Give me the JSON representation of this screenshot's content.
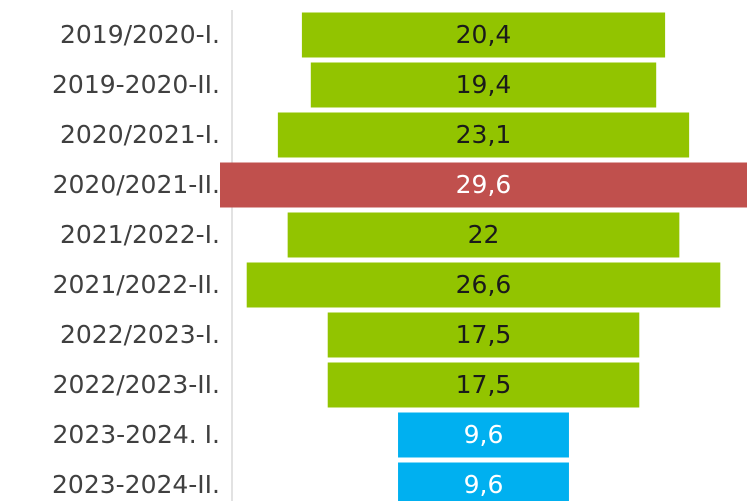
{
  "chart_data": {
    "type": "bar",
    "orientation": "horizontal",
    "align": "center",
    "categories": [
      "2019/2020-I.",
      "2019-2020-II.",
      "2020/2021-I.",
      "2020/2021-II.",
      "2021/2022-I.",
      "2021/2022-II.",
      "2022/2023-I.",
      "2022/2023-II.",
      "2023-2024. I.",
      "2023-2024-II."
    ],
    "values": [
      20.4,
      19.4,
      23.1,
      29.6,
      22,
      26.6,
      17.5,
      17.5,
      9.6,
      9.6
    ],
    "value_labels": [
      "20,4",
      "19,4",
      "23,1",
      "29,6",
      "22",
      "26,6",
      "17,5",
      "17,5",
      "9,6",
      "9,6"
    ],
    "colors": [
      "#92c400",
      "#92c400",
      "#92c400",
      "#c0504d",
      "#92c400",
      "#92c400",
      "#92c400",
      "#92c400",
      "#00b0f0",
      "#00b0f0"
    ]
  }
}
